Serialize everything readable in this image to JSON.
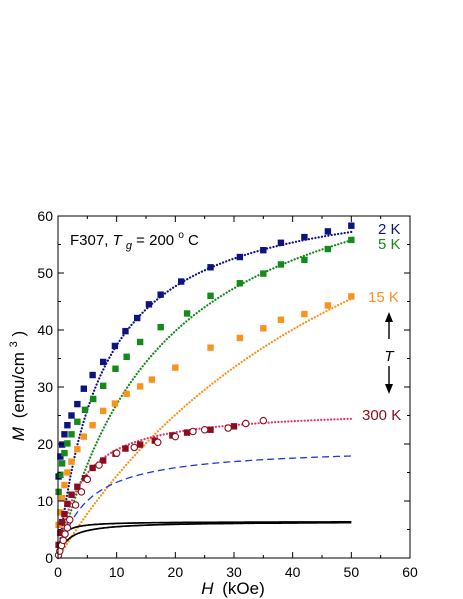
{
  "chart_data": {
    "type": "scatter",
    "annotation_sample": "F307, ",
    "annotation_tg_symbol": "T",
    "annotation_tg_subscript": "g",
    "annotation_tg_value": " = 200",
    "annotation_tg_degree": "o",
    "annotation_tg_unit": "C",
    "xlabel_symbol": "H",
    "xlabel_unit": "(kOe)",
    "ylabel_symbol": "M",
    "ylabel_unit_base": "(emu/cm",
    "ylabel_unit_exp": "3",
    "ylabel_unit_close": ")",
    "xlim": [
      0,
      60
    ],
    "ylim": [
      0,
      60
    ],
    "x_ticks": [
      "0",
      "10",
      "20",
      "30",
      "40",
      "50",
      "60"
    ],
    "y_ticks": [
      "0",
      "10",
      "20",
      "30",
      "40",
      "50",
      "60"
    ],
    "temperature_label": "T",
    "colors": {
      "2K": "#0d1480",
      "5K": "#158a1c",
      "15K": "#f7941d",
      "300K": "#8b0e1e",
      "fit300": "#e8336b",
      "dashed": "#1f3bd9",
      "paramagnetic": "#000000"
    },
    "series": [
      {
        "name": "2 K",
        "color": "#0d1480",
        "marker": "square",
        "points": [
          [
            0.1,
            14.3
          ],
          [
            0.4,
            17.8
          ],
          [
            0.7,
            19.9
          ],
          [
            1.1,
            21.7
          ],
          [
            1.6,
            23.3
          ],
          [
            2.3,
            25
          ],
          [
            3.3,
            27
          ],
          [
            4.4,
            29.7
          ],
          [
            5.9,
            32.1
          ],
          [
            7.7,
            34.4
          ],
          [
            9.7,
            37.2
          ],
          [
            11.5,
            39.8
          ],
          [
            13.5,
            42.1
          ],
          [
            15.5,
            44.5
          ],
          [
            17.5,
            46.2
          ],
          [
            21,
            48.5
          ],
          [
            26,
            51
          ],
          [
            31,
            52.8
          ],
          [
            35,
            54
          ],
          [
            38,
            55.3
          ],
          [
            42,
            56.3
          ],
          [
            46,
            57.3
          ],
          [
            50,
            58.3
          ]
        ]
      },
      {
        "name": "5 K",
        "color": "#158a1c",
        "marker": "square",
        "points": [
          [
            0.1,
            11.6
          ],
          [
            0.4,
            14.6
          ],
          [
            0.7,
            16.6
          ],
          [
            1.1,
            18.4
          ],
          [
            1.6,
            20.1
          ],
          [
            2.3,
            21.7
          ],
          [
            3.3,
            23.9
          ],
          [
            4.6,
            26
          ],
          [
            6,
            27.9
          ],
          [
            7.7,
            30.2
          ],
          [
            9.8,
            33.2
          ],
          [
            11.7,
            35.3
          ],
          [
            14,
            37.9
          ],
          [
            17.5,
            40.5
          ],
          [
            22,
            42.9
          ],
          [
            26,
            46
          ],
          [
            31,
            48.2
          ],
          [
            35,
            49.9
          ],
          [
            38,
            51.5
          ],
          [
            42,
            52.3
          ],
          [
            46,
            54.2
          ],
          [
            50,
            55.8
          ]
        ]
      },
      {
        "name": "15 K",
        "color": "#f7941d",
        "marker": "square",
        "points": [
          [
            0.1,
            5.8
          ],
          [
            0.4,
            8
          ],
          [
            0.7,
            10.5
          ],
          [
            1.1,
            12.8
          ],
          [
            1.6,
            15
          ],
          [
            2.3,
            16.9
          ],
          [
            3.3,
            19.1
          ],
          [
            4.4,
            21.3
          ],
          [
            5.9,
            23.3
          ],
          [
            7.7,
            25.8
          ],
          [
            9.7,
            27.1
          ],
          [
            11.7,
            28.8
          ],
          [
            14,
            30.1
          ],
          [
            16,
            31.3
          ],
          [
            20,
            33.4
          ],
          [
            26,
            36.9
          ],
          [
            31,
            38.6
          ],
          [
            35,
            40.3
          ],
          [
            38,
            41.8
          ],
          [
            42,
            42.8
          ],
          [
            46,
            44.3
          ],
          [
            50,
            45.9
          ]
        ]
      },
      {
        "name": "300 K",
        "color": "#8b0e1e",
        "marker": "square",
        "points": [
          [
            0.1,
            2.3
          ],
          [
            0.4,
            4.4
          ],
          [
            0.7,
            6.3
          ],
          [
            1.1,
            7.7
          ],
          [
            1.6,
            9.5
          ],
          [
            2.3,
            11.1
          ],
          [
            3.3,
            12.5
          ],
          [
            4.6,
            14
          ],
          [
            5.9,
            15.8
          ],
          [
            7.7,
            17.1
          ],
          [
            9.8,
            18.3
          ],
          [
            11.5,
            19.2
          ],
          [
            14,
            19.9
          ],
          [
            16.5,
            20.6
          ],
          [
            19.5,
            21.5
          ],
          [
            22,
            22
          ],
          [
            26,
            22.5
          ],
          [
            30,
            23.1
          ]
        ]
      },
      {
        "name": "300 K (open)",
        "color": "#8b0e1e",
        "marker": "circle-open",
        "points": [
          [
            0.1,
            0.5
          ],
          [
            0.3,
            1.2
          ],
          [
            0.6,
            2.2
          ],
          [
            0.9,
            3.1
          ],
          [
            1.2,
            4.2
          ],
          [
            1.6,
            5.3
          ],
          [
            2,
            6.7
          ],
          [
            3,
            9.3
          ],
          [
            4,
            11.6
          ],
          [
            5,
            13.8
          ],
          [
            7,
            16.3
          ],
          [
            10,
            18.4
          ],
          [
            13,
            19.4
          ],
          [
            17,
            20.3
          ],
          [
            20,
            21.3
          ],
          [
            23,
            22.2
          ],
          [
            25,
            22.5
          ],
          [
            29,
            22.8
          ],
          [
            32,
            23.6
          ],
          [
            35,
            24.1
          ]
        ]
      }
    ],
    "curves": [
      {
        "name": "2 K fit",
        "color": "#0d1480",
        "style": "dotted",
        "Ms": 66,
        "b": 0.13
      },
      {
        "name": "5 K fit",
        "color": "#158a1c",
        "style": "dotted",
        "Ms": 76,
        "b": 0.055
      },
      {
        "name": "15 K fit",
        "color": "#f7941d",
        "style": "dotted",
        "Ms": 99,
        "b": 0.017
      },
      {
        "name": "300 K fit",
        "color": "#e8336b",
        "style": "dotted",
        "Ms": 26.3,
        "b": 0.26
      },
      {
        "name": "dashed",
        "color": "#1f3bd9",
        "style": "dashed",
        "Ms": 19.6,
        "b": 0.21
      },
      {
        "name": "black solid 1",
        "color": "#000000",
        "style": "solid",
        "Ms": 6.4,
        "b": 1.8
      },
      {
        "name": "black solid 2",
        "color": "#000000",
        "style": "solid",
        "Ms": 6.4,
        "b": 0.6
      }
    ],
    "series_labels": [
      {
        "text": "2 K",
        "color": "#0d1480"
      },
      {
        "text": "5 K",
        "color": "#158a1c"
      },
      {
        "text": "15 K",
        "color": "#f7941d"
      },
      {
        "text": "300 K",
        "color": "#8b0e1e"
      }
    ]
  }
}
